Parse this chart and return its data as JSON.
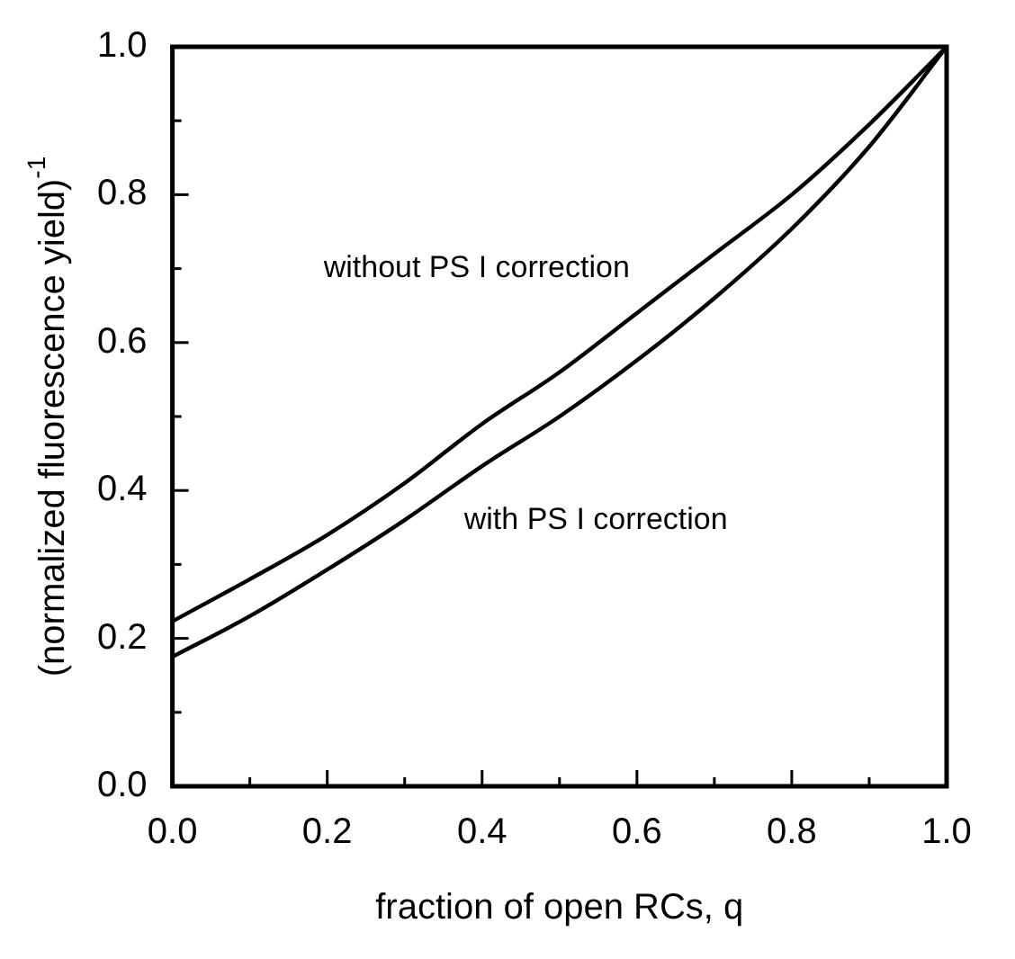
{
  "chart_data": {
    "type": "line",
    "xlabel": "fraction of open RCs, q",
    "ylabel": "(normalized fluorescence yield)$^{-1}$",
    "x": [
      0,
      0.1,
      0.2,
      0.3,
      0.4,
      0.5,
      0.6,
      0.7,
      0.8,
      0.9,
      1.0
    ],
    "series": [
      {
        "name": "without PS I correction",
        "color": "#000000",
        "values": [
          0.223,
          0.28,
          0.34,
          0.41,
          0.49,
          0.56,
          0.64,
          0.72,
          0.8,
          0.895,
          1.0
        ]
      },
      {
        "name": "with PS I correction",
        "color": "#000000",
        "values": [
          0.175,
          0.23,
          0.293,
          0.36,
          0.433,
          0.5,
          0.576,
          0.66,
          0.754,
          0.865,
          1.0
        ]
      }
    ],
    "xlim": [
      0,
      1
    ],
    "ylim": [
      0,
      1
    ],
    "xticks": [
      {
        "value": 0,
        "label": "0.0"
      },
      {
        "value": 0.1,
        "label": null
      },
      {
        "value": 0.2,
        "label": "0.2"
      },
      {
        "value": 0.3,
        "label": null
      },
      {
        "value": 0.4,
        "label": "0.4"
      },
      {
        "value": 0.5,
        "label": null
      },
      {
        "value": 0.6,
        "label": "0.6"
      },
      {
        "value": 0.7,
        "label": null
      },
      {
        "value": 0.8,
        "label": "0.8"
      },
      {
        "value": 0.9,
        "label": null
      },
      {
        "value": 1,
        "label": "1.0"
      }
    ],
    "yticks": [
      {
        "value": 0,
        "label": "0.0"
      },
      {
        "value": 0.1,
        "label": null
      },
      {
        "value": 0.2,
        "label": "0.2"
      },
      {
        "value": 0.3,
        "label": null
      },
      {
        "value": 0.4,
        "label": "0.4"
      },
      {
        "value": 0.5,
        "label": null
      },
      {
        "value": 0.6,
        "label": "0.6"
      },
      {
        "value": 0.7,
        "label": null
      },
      {
        "value": 0.8,
        "label": "0.8"
      },
      {
        "value": 0.9,
        "label": null
      },
      {
        "value": 1,
        "label": "1.0"
      }
    ],
    "grid": false,
    "legend": false,
    "marker": "none",
    "line_style": "solid"
  }
}
